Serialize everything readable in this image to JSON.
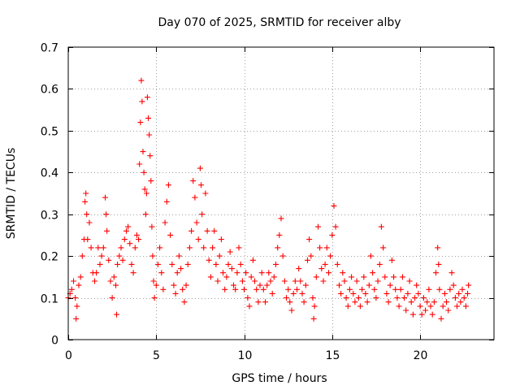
{
  "chart_data": {
    "type": "scatter",
    "title": "Day 070 of 2025, SRMTID for receiver alby",
    "xlabel": "GPS time / hours",
    "ylabel": "SRMTID / TECUs",
    "xlim": [
      0,
      24.2
    ],
    "ylim": [
      0,
      0.7
    ],
    "xticks": [
      0,
      5,
      10,
      15,
      20
    ],
    "xtick_labels": [
      "0",
      "5",
      "10",
      "15",
      "20"
    ],
    "yticks": [
      0,
      0.1,
      0.2,
      0.3,
      0.4,
      0.5,
      0.6,
      0.7
    ],
    "ytick_labels": [
      "0",
      "0.1",
      "0.2",
      "0.3",
      "0.4",
      "0.5",
      "0.6",
      "0.7"
    ],
    "grid": true,
    "marker": "plus",
    "marker_color": "#ff0000",
    "series": [
      {
        "name": "SRMTID",
        "points": [
          [
            0.0,
            0.1
          ],
          [
            0.1,
            0.11
          ],
          [
            0.2,
            0.12
          ],
          [
            0.3,
            0.14
          ],
          [
            0.4,
            0.1
          ],
          [
            0.45,
            0.05
          ],
          [
            0.5,
            0.08
          ],
          [
            0.6,
            0.13
          ],
          [
            0.7,
            0.15
          ],
          [
            0.8,
            0.2
          ],
          [
            0.9,
            0.24
          ],
          [
            0.95,
            0.33
          ],
          [
            1.0,
            0.35
          ],
          [
            1.05,
            0.3
          ],
          [
            1.1,
            0.24
          ],
          [
            1.2,
            0.28
          ],
          [
            1.3,
            0.22
          ],
          [
            1.4,
            0.16
          ],
          [
            1.5,
            0.14
          ],
          [
            1.6,
            0.16
          ],
          [
            1.7,
            0.22
          ],
          [
            1.8,
            0.18
          ],
          [
            1.9,
            0.2
          ],
          [
            2.0,
            0.22
          ],
          [
            2.1,
            0.34
          ],
          [
            2.15,
            0.3
          ],
          [
            2.2,
            0.26
          ],
          [
            2.3,
            0.19
          ],
          [
            2.4,
            0.14
          ],
          [
            2.5,
            0.1
          ],
          [
            2.6,
            0.15
          ],
          [
            2.7,
            0.13
          ],
          [
            2.75,
            0.06
          ],
          [
            2.8,
            0.18
          ],
          [
            2.9,
            0.2
          ],
          [
            3.0,
            0.22
          ],
          [
            3.1,
            0.19
          ],
          [
            3.2,
            0.24
          ],
          [
            3.3,
            0.26
          ],
          [
            3.4,
            0.27
          ],
          [
            3.5,
            0.23
          ],
          [
            3.6,
            0.18
          ],
          [
            3.7,
            0.16
          ],
          [
            3.8,
            0.22
          ],
          [
            3.9,
            0.25
          ],
          [
            4.0,
            0.24
          ],
          [
            4.05,
            0.42
          ],
          [
            4.1,
            0.52
          ],
          [
            4.15,
            0.62
          ],
          [
            4.2,
            0.57
          ],
          [
            4.25,
            0.45
          ],
          [
            4.3,
            0.4
          ],
          [
            4.35,
            0.36
          ],
          [
            4.4,
            0.3
          ],
          [
            4.45,
            0.35
          ],
          [
            4.5,
            0.58
          ],
          [
            4.55,
            0.53
          ],
          [
            4.6,
            0.49
          ],
          [
            4.65,
            0.44
          ],
          [
            4.7,
            0.38
          ],
          [
            4.75,
            0.27
          ],
          [
            4.8,
            0.2
          ],
          [
            4.85,
            0.14
          ],
          [
            4.9,
            0.1
          ],
          [
            5.0,
            0.13
          ],
          [
            5.1,
            0.18
          ],
          [
            5.2,
            0.22
          ],
          [
            5.3,
            0.16
          ],
          [
            5.4,
            0.12
          ],
          [
            5.5,
            0.28
          ],
          [
            5.6,
            0.33
          ],
          [
            5.7,
            0.37
          ],
          [
            5.8,
            0.25
          ],
          [
            5.9,
            0.18
          ],
          [
            6.0,
            0.13
          ],
          [
            6.1,
            0.11
          ],
          [
            6.2,
            0.16
          ],
          [
            6.3,
            0.2
          ],
          [
            6.4,
            0.17
          ],
          [
            6.5,
            0.12
          ],
          [
            6.6,
            0.09
          ],
          [
            6.7,
            0.13
          ],
          [
            6.8,
            0.18
          ],
          [
            6.9,
            0.22
          ],
          [
            7.0,
            0.26
          ],
          [
            7.1,
            0.38
          ],
          [
            7.2,
            0.34
          ],
          [
            7.3,
            0.28
          ],
          [
            7.4,
            0.24
          ],
          [
            7.5,
            0.41
          ],
          [
            7.55,
            0.37
          ],
          [
            7.6,
            0.3
          ],
          [
            7.7,
            0.22
          ],
          [
            7.8,
            0.35
          ],
          [
            7.9,
            0.26
          ],
          [
            8.0,
            0.19
          ],
          [
            8.1,
            0.15
          ],
          [
            8.2,
            0.22
          ],
          [
            8.3,
            0.26
          ],
          [
            8.4,
            0.18
          ],
          [
            8.5,
            0.14
          ],
          [
            8.6,
            0.2
          ],
          [
            8.7,
            0.24
          ],
          [
            8.8,
            0.16
          ],
          [
            8.9,
            0.12
          ],
          [
            9.0,
            0.15
          ],
          [
            9.1,
            0.18
          ],
          [
            9.2,
            0.21
          ],
          [
            9.3,
            0.17
          ],
          [
            9.4,
            0.13
          ],
          [
            9.5,
            0.12
          ],
          [
            9.6,
            0.16
          ],
          [
            9.7,
            0.22
          ],
          [
            9.8,
            0.18
          ],
          [
            9.9,
            0.14
          ],
          [
            10.0,
            0.12
          ],
          [
            10.1,
            0.16
          ],
          [
            10.2,
            0.1
          ],
          [
            10.3,
            0.08
          ],
          [
            10.4,
            0.15
          ],
          [
            10.5,
            0.19
          ],
          [
            10.6,
            0.14
          ],
          [
            10.7,
            0.12
          ],
          [
            10.8,
            0.09
          ],
          [
            10.9,
            0.13
          ],
          [
            11.0,
            0.16
          ],
          [
            11.1,
            0.12
          ],
          [
            11.2,
            0.09
          ],
          [
            11.3,
            0.13
          ],
          [
            11.4,
            0.16
          ],
          [
            11.5,
            0.14
          ],
          [
            11.6,
            0.11
          ],
          [
            11.7,
            0.15
          ],
          [
            11.8,
            0.18
          ],
          [
            11.9,
            0.22
          ],
          [
            12.0,
            0.25
          ],
          [
            12.1,
            0.29
          ],
          [
            12.2,
            0.2
          ],
          [
            12.3,
            0.14
          ],
          [
            12.4,
            0.1
          ],
          [
            12.5,
            0.12
          ],
          [
            12.6,
            0.09
          ],
          [
            12.7,
            0.07
          ],
          [
            12.8,
            0.11
          ],
          [
            12.9,
            0.14
          ],
          [
            13.0,
            0.12
          ],
          [
            13.1,
            0.17
          ],
          [
            13.2,
            0.14
          ],
          [
            13.3,
            0.11
          ],
          [
            13.4,
            0.09
          ],
          [
            13.5,
            0.13
          ],
          [
            13.6,
            0.19
          ],
          [
            13.7,
            0.24
          ],
          [
            13.8,
            0.2
          ],
          [
            13.9,
            0.1
          ],
          [
            13.95,
            0.05
          ],
          [
            14.0,
            0.08
          ],
          [
            14.1,
            0.15
          ],
          [
            14.2,
            0.27
          ],
          [
            14.3,
            0.22
          ],
          [
            14.4,
            0.17
          ],
          [
            14.5,
            0.14
          ],
          [
            14.6,
            0.18
          ],
          [
            14.7,
            0.22
          ],
          [
            14.8,
            0.16
          ],
          [
            14.9,
            0.2
          ],
          [
            15.0,
            0.25
          ],
          [
            15.1,
            0.32
          ],
          [
            15.2,
            0.27
          ],
          [
            15.3,
            0.18
          ],
          [
            15.4,
            0.13
          ],
          [
            15.5,
            0.11
          ],
          [
            15.6,
            0.16
          ],
          [
            15.7,
            0.14
          ],
          [
            15.8,
            0.1
          ],
          [
            15.9,
            0.08
          ],
          [
            16.0,
            0.12
          ],
          [
            16.1,
            0.15
          ],
          [
            16.2,
            0.11
          ],
          [
            16.3,
            0.09
          ],
          [
            16.4,
            0.14
          ],
          [
            16.5,
            0.1
          ],
          [
            16.6,
            0.08
          ],
          [
            16.7,
            0.12
          ],
          [
            16.8,
            0.15
          ],
          [
            16.9,
            0.11
          ],
          [
            17.0,
            0.09
          ],
          [
            17.1,
            0.13
          ],
          [
            17.2,
            0.2
          ],
          [
            17.3,
            0.16
          ],
          [
            17.4,
            0.12
          ],
          [
            17.5,
            0.1
          ],
          [
            17.6,
            0.14
          ],
          [
            17.7,
            0.18
          ],
          [
            17.8,
            0.27
          ],
          [
            17.9,
            0.22
          ],
          [
            18.0,
            0.15
          ],
          [
            18.1,
            0.11
          ],
          [
            18.2,
            0.09
          ],
          [
            18.3,
            0.13
          ],
          [
            18.4,
            0.19
          ],
          [
            18.5,
            0.15
          ],
          [
            18.6,
            0.12
          ],
          [
            18.7,
            0.1
          ],
          [
            18.8,
            0.08
          ],
          [
            18.9,
            0.12
          ],
          [
            19.0,
            0.15
          ],
          [
            19.1,
            0.1
          ],
          [
            19.2,
            0.07
          ],
          [
            19.3,
            0.11
          ],
          [
            19.4,
            0.14
          ],
          [
            19.5,
            0.09
          ],
          [
            19.6,
            0.06
          ],
          [
            19.7,
            0.1
          ],
          [
            19.8,
            0.13
          ],
          [
            19.9,
            0.11
          ],
          [
            20.0,
            0.08
          ],
          [
            20.1,
            0.06
          ],
          [
            20.2,
            0.1
          ],
          [
            20.3,
            0.07
          ],
          [
            20.4,
            0.09
          ],
          [
            20.5,
            0.12
          ],
          [
            20.6,
            0.08
          ],
          [
            20.7,
            0.06
          ],
          [
            20.8,
            0.09
          ],
          [
            20.9,
            0.16
          ],
          [
            21.0,
            0.22
          ],
          [
            21.05,
            0.18
          ],
          [
            21.1,
            0.12
          ],
          [
            21.2,
            0.05
          ],
          [
            21.3,
            0.08
          ],
          [
            21.4,
            0.11
          ],
          [
            21.5,
            0.09
          ],
          [
            21.6,
            0.07
          ],
          [
            21.7,
            0.12
          ],
          [
            21.8,
            0.16
          ],
          [
            21.9,
            0.13
          ],
          [
            22.0,
            0.1
          ],
          [
            22.1,
            0.08
          ],
          [
            22.2,
            0.11
          ],
          [
            22.3,
            0.09
          ],
          [
            22.4,
            0.12
          ],
          [
            22.5,
            0.1
          ],
          [
            22.6,
            0.08
          ],
          [
            22.7,
            0.11
          ],
          [
            22.75,
            0.13
          ]
        ]
      }
    ]
  }
}
